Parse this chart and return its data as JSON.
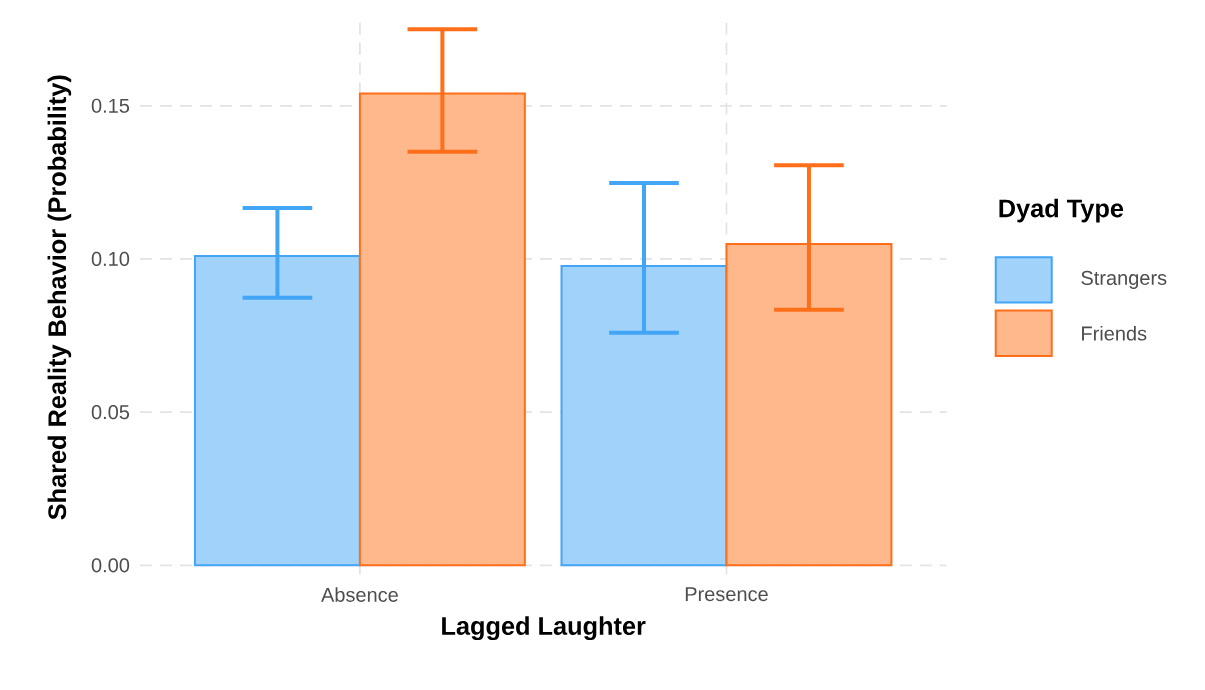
{
  "chart_data": {
    "type": "bar",
    "xlabel": "Lagged Laughter",
    "ylabel": "Shared Reality Behavior (Probability)",
    "legend_title": "Dyad Type",
    "categories": [
      "Absence",
      "Presence"
    ],
    "series": [
      {
        "name": "Strangers",
        "color": "#42a5f5",
        "values": [
          0.101,
          0.0977
        ],
        "errors": [
          [
            0.0873,
            0.1166
          ],
          [
            0.0759,
            0.1248
          ]
        ]
      },
      {
        "name": "Friends",
        "color": "#ff6f1a",
        "values": [
          0.154,
          0.1049
        ],
        "errors": [
          [
            0.135,
            0.175
          ],
          [
            0.0834,
            0.1306
          ]
        ]
      }
    ],
    "ylim": [
      -0.003,
      0.178
    ],
    "yticks": [
      {
        "value": 0,
        "label": "0.00"
      },
      {
        "value": 0.05,
        "label": "0.05"
      },
      {
        "value": 0.1,
        "label": "0.10"
      },
      {
        "value": 0.15,
        "label": "0.15"
      }
    ],
    "grid": true,
    "legend": "right"
  }
}
